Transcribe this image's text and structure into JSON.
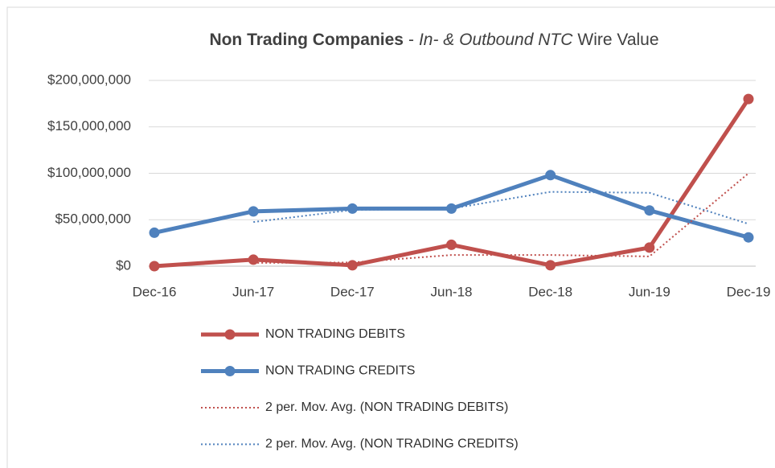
{
  "chart_data": {
    "type": "line",
    "title": [
      {
        "text": "Non Trading Companies",
        "style": "bold"
      },
      {
        "text": "-",
        "style": "normal"
      },
      {
        "text": "In- & Outbound NTC",
        "style": "italic"
      },
      {
        "text": "Wire Value",
        "style": "normal"
      }
    ],
    "categories": [
      "Dec-16",
      "Jun-17",
      "Dec-17",
      "Jun-18",
      "Dec-18",
      "Jun-19",
      "Dec-19"
    ],
    "series": [
      {
        "name": "NON TRADING DEBITS",
        "color": "#c0504d",
        "line": "solid",
        "markers": true,
        "values": [
          0,
          7000000,
          1000000,
          23000000,
          1000000,
          20000000,
          180000000
        ]
      },
      {
        "name": "NON TRADING CREDITS",
        "color": "#4f81bd",
        "line": "solid",
        "markers": true,
        "values": [
          36000000,
          59000000,
          62000000,
          62000000,
          98000000,
          60000000,
          31000000
        ]
      },
      {
        "name": "2 per. Mov. Avg. (NON TRADING DEBITS)",
        "color": "#c0504d",
        "line": "dotted",
        "markers": false,
        "values": [
          null,
          3500000,
          4000000,
          12000000,
          12000000,
          10500000,
          100000000
        ]
      },
      {
        "name": "2 per. Mov. Avg. (NON TRADING CREDITS)",
        "color": "#4f81bd",
        "line": "dotted",
        "markers": false,
        "values": [
          null,
          47500000,
          60500000,
          62000000,
          80000000,
          79000000,
          45500000
        ]
      }
    ],
    "ylim": [
      0,
      200000000
    ],
    "yticks": [
      {
        "value": 0,
        "label": "$0"
      },
      {
        "value": 50000000,
        "label": "$50,000,000"
      },
      {
        "value": 100000000,
        "label": "$100,000,000"
      },
      {
        "value": 150000000,
        "label": "$150,000,000"
      },
      {
        "value": 200000000,
        "label": "$200,000,000"
      }
    ],
    "grid": true,
    "legend": "bottom"
  }
}
